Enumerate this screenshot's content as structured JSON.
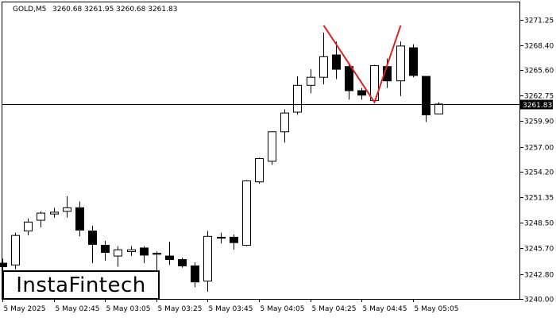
{
  "header": {
    "symbol": "GOLD,M5",
    "ohlc": "3260.68 3261.95 3260.68 3261.83"
  },
  "logo": {
    "text": "InstaFintech"
  },
  "colors": {
    "bull_fill": "#ffffff",
    "bear_fill": "#000000",
    "candle_stroke": "#000000",
    "pattern": "#e02020",
    "price_line": "#000000",
    "label_bg": "#000000",
    "label_text": "#ffffff"
  },
  "chart_data": {
    "type": "candlestick",
    "title": "GOLD,M5",
    "ylim": [
      3240.0,
      3272.2
    ],
    "y_ticks": [
      "3240.00",
      "3242.80",
      "3245.70",
      "3248.50",
      "3251.35",
      "3254.20",
      "3257.00",
      "3259.90",
      "3262.75",
      "3265.60",
      "3268.40",
      "3271.25"
    ],
    "x_ticks": [
      "5 May 2025",
      "5 May 02:45",
      "5 May 03:05",
      "5 May 03:25",
      "5 May 03:45",
      "5 May 04:05",
      "5 May 04:25",
      "5 May 04:45",
      "5 May 05:05"
    ],
    "current_price": "3261.83",
    "grid": false,
    "candles": [
      {
        "o": 3244.0,
        "h": 3244.5,
        "l": 3242.3,
        "c": 3243.6
      },
      {
        "o": 3243.8,
        "h": 3247.4,
        "l": 3243.3,
        "c": 3247.1
      },
      {
        "o": 3247.6,
        "h": 3249.0,
        "l": 3247.1,
        "c": 3248.6
      },
      {
        "o": 3248.8,
        "h": 3249.8,
        "l": 3248.0,
        "c": 3249.6
      },
      {
        "o": 3249.5,
        "h": 3250.2,
        "l": 3249.1,
        "c": 3249.7
      },
      {
        "o": 3249.8,
        "h": 3251.5,
        "l": 3249.1,
        "c": 3250.2
      },
      {
        "o": 3250.2,
        "h": 3250.9,
        "l": 3247.0,
        "c": 3247.7
      },
      {
        "o": 3247.6,
        "h": 3248.2,
        "l": 3244.0,
        "c": 3246.1
      },
      {
        "o": 3246.0,
        "h": 3246.5,
        "l": 3244.3,
        "c": 3245.2
      },
      {
        "o": 3244.8,
        "h": 3245.9,
        "l": 3243.6,
        "c": 3245.5
      },
      {
        "o": 3245.3,
        "h": 3245.9,
        "l": 3244.8,
        "c": 3245.5
      },
      {
        "o": 3245.7,
        "h": 3245.9,
        "l": 3244.0,
        "c": 3244.9
      },
      {
        "o": 3245.1,
        "h": 3245.3,
        "l": 3242.7,
        "c": 3245.0
      },
      {
        "o": 3244.8,
        "h": 3246.4,
        "l": 3243.8,
        "c": 3244.4
      },
      {
        "o": 3244.4,
        "h": 3244.6,
        "l": 3243.5,
        "c": 3243.7
      },
      {
        "o": 3243.7,
        "h": 3244.1,
        "l": 3241.3,
        "c": 3241.9
      },
      {
        "o": 3242.0,
        "h": 3247.6,
        "l": 3240.8,
        "c": 3247.0
      },
      {
        "o": 3246.9,
        "h": 3247.4,
        "l": 3246.2,
        "c": 3246.8
      },
      {
        "o": 3246.9,
        "h": 3247.2,
        "l": 3245.5,
        "c": 3246.3
      },
      {
        "o": 3246.0,
        "h": 3253.3,
        "l": 3245.9,
        "c": 3253.2
      },
      {
        "o": 3253.1,
        "h": 3255.8,
        "l": 3252.9,
        "c": 3255.7
      },
      {
        "o": 3255.4,
        "h": 3258.7,
        "l": 3255.0,
        "c": 3258.7
      },
      {
        "o": 3258.7,
        "h": 3261.2,
        "l": 3257.5,
        "c": 3260.8
      },
      {
        "o": 3260.9,
        "h": 3264.9,
        "l": 3260.6,
        "c": 3263.9
      },
      {
        "o": 3263.9,
        "h": 3265.7,
        "l": 3263.0,
        "c": 3264.8
      },
      {
        "o": 3264.8,
        "h": 3269.8,
        "l": 3264.0,
        "c": 3267.1
      },
      {
        "o": 3267.3,
        "h": 3268.8,
        "l": 3264.6,
        "c": 3265.7
      },
      {
        "o": 3266.0,
        "h": 3266.3,
        "l": 3262.3,
        "c": 3263.3
      },
      {
        "o": 3263.3,
        "h": 3263.6,
        "l": 3262.3,
        "c": 3262.8
      },
      {
        "o": 3262.2,
        "h": 3266.2,
        "l": 3261.9,
        "c": 3266.1
      },
      {
        "o": 3266.0,
        "h": 3266.9,
        "l": 3263.6,
        "c": 3264.4
      },
      {
        "o": 3264.4,
        "h": 3268.8,
        "l": 3262.7,
        "c": 3268.3
      },
      {
        "o": 3268.1,
        "h": 3268.5,
        "l": 3264.8,
        "c": 3265.0
      },
      {
        "o": 3264.9,
        "h": 3264.9,
        "l": 3259.8,
        "c": 3260.6
      },
      {
        "o": 3260.7,
        "h": 3262.0,
        "l": 3260.7,
        "c": 3261.8
      }
    ],
    "pattern": [
      {
        "candle": 25,
        "price": 3270.6
      },
      {
        "candle": 29,
        "price": 3262.0
      },
      {
        "candle": 31,
        "price": 3270.6
      }
    ]
  }
}
